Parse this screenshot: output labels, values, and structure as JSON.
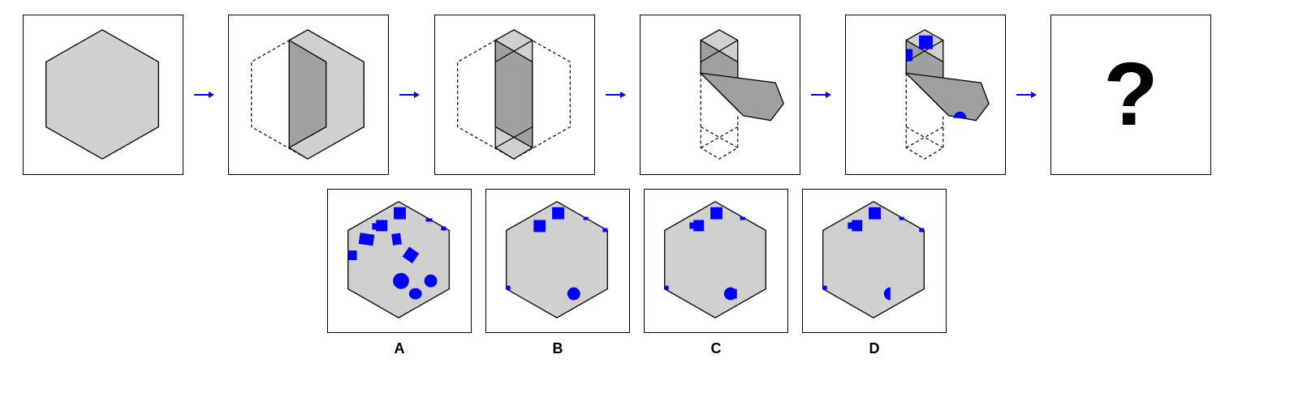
{
  "colors": {
    "paper": "#d0d0d0",
    "fold": "#a0a0a0",
    "outline": "#000000",
    "hole": "#0000ff",
    "arrow": "#0000ff"
  },
  "sequence": {
    "question_mark": "?"
  },
  "options": [
    {
      "label": "A"
    },
    {
      "label": "B"
    },
    {
      "label": "C"
    },
    {
      "label": "D"
    }
  ]
}
